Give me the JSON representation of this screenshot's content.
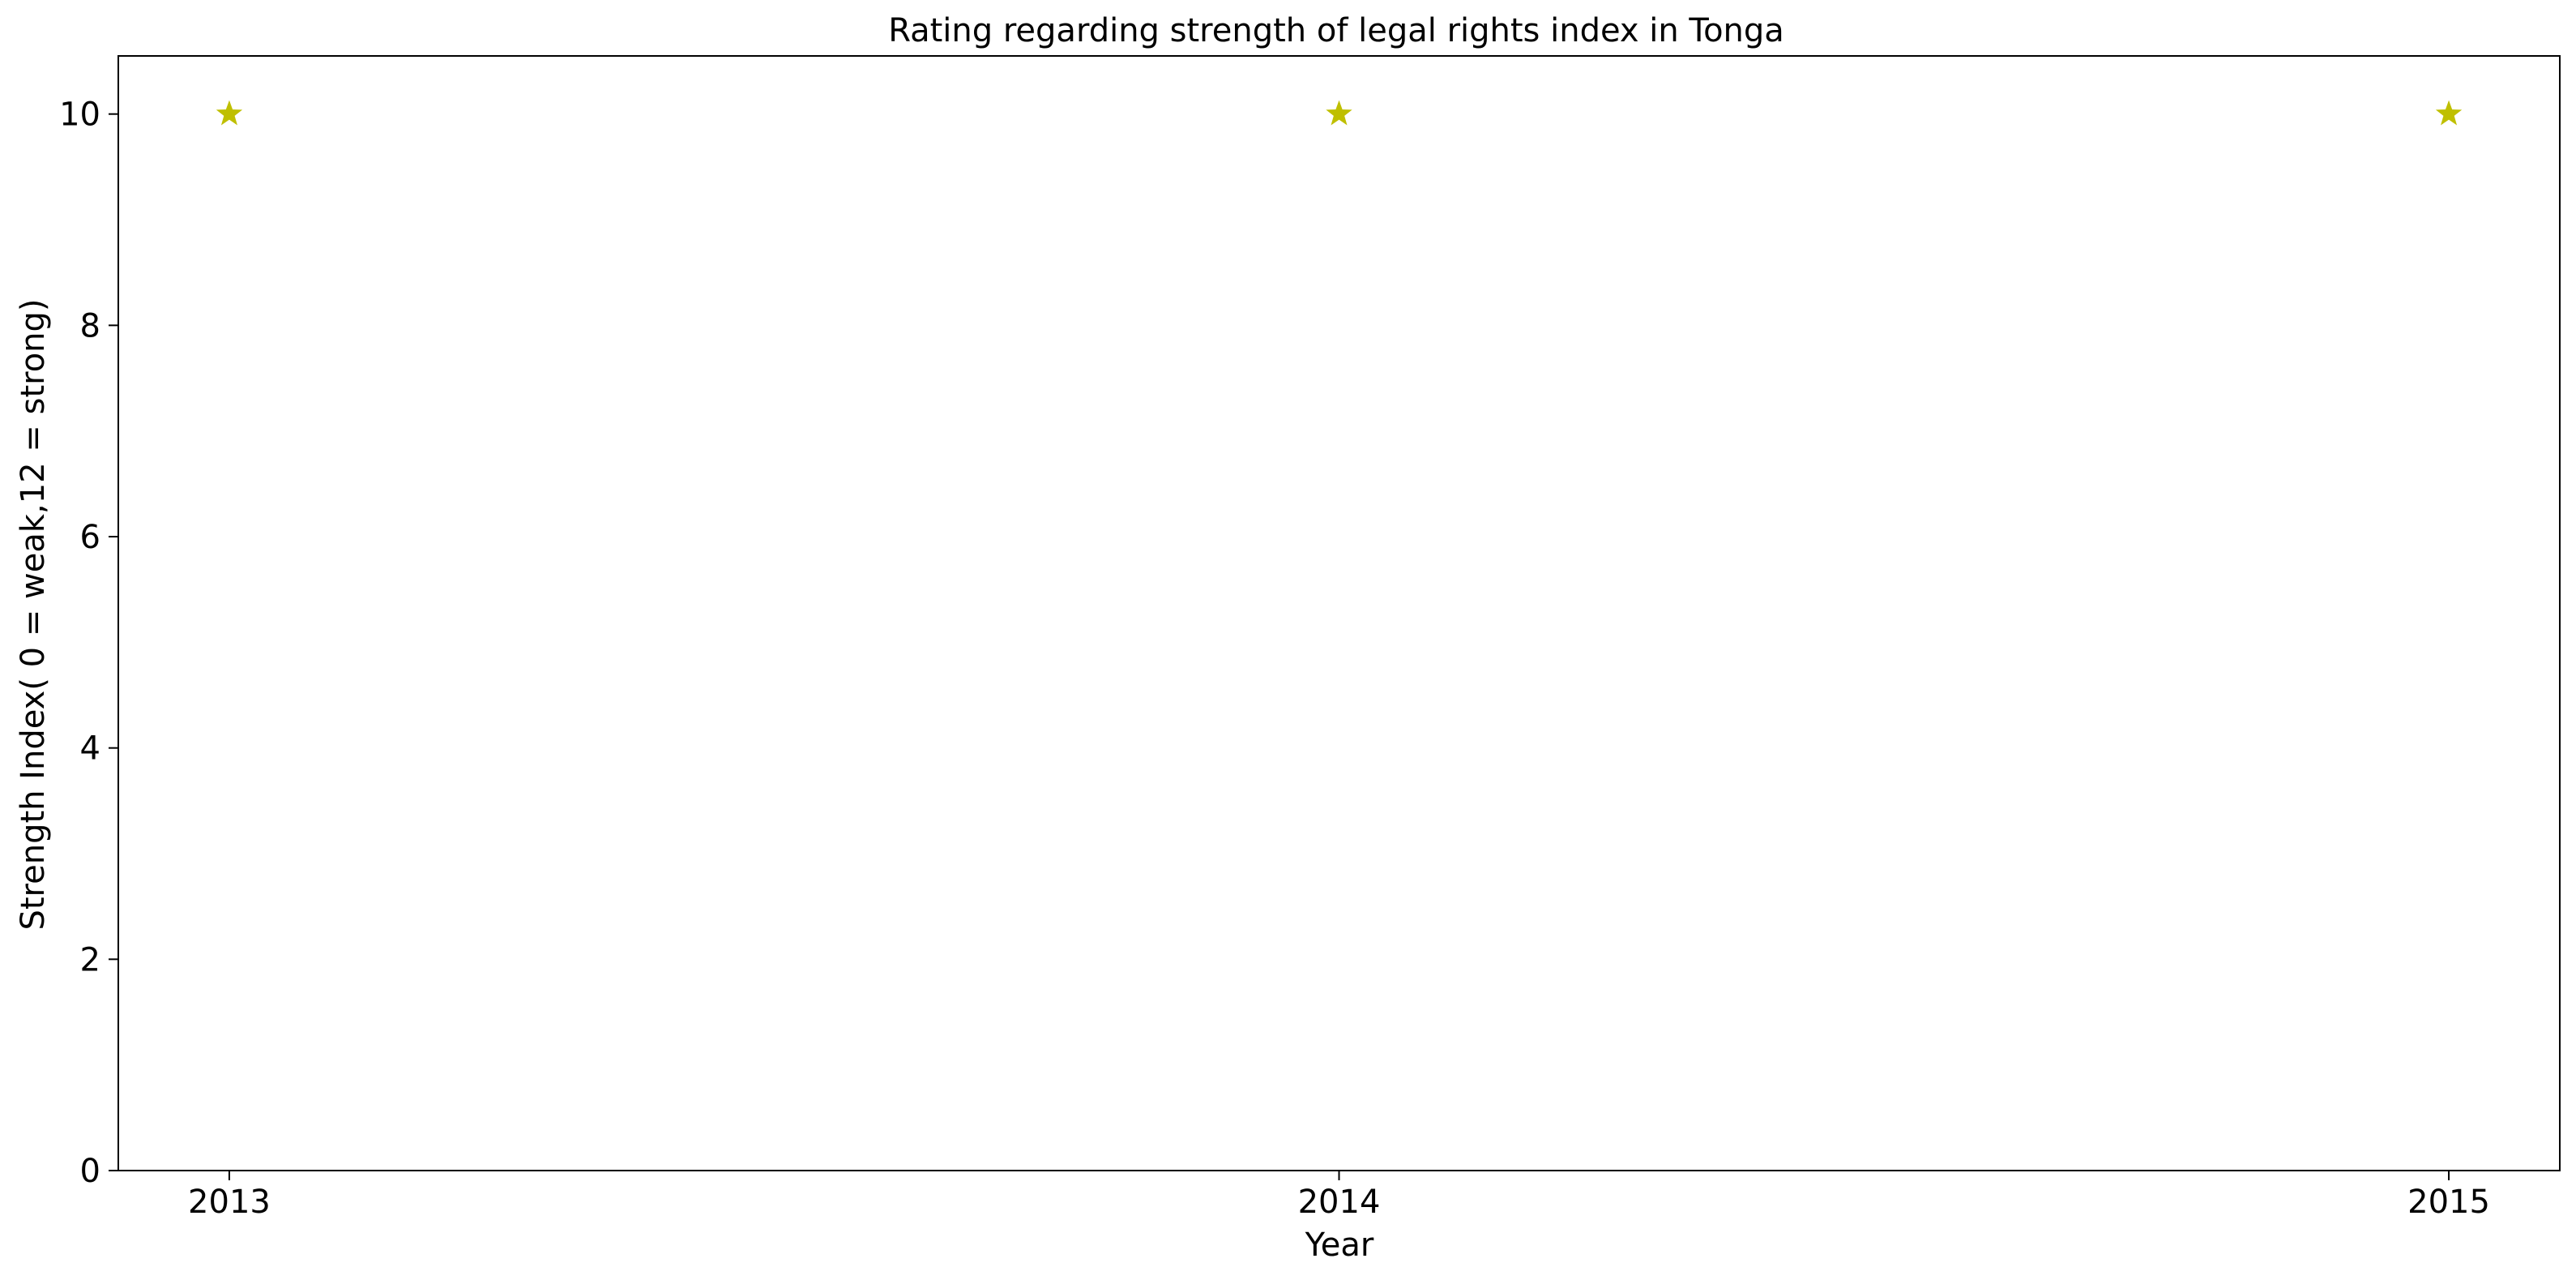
{
  "chart_data": {
    "type": "scatter",
    "title": "Rating regarding strength of legal rights index in Tonga",
    "xlabel": "Year",
    "ylabel": "Strength Index( 0 = weak,12 = strong)",
    "x": [
      "2013",
      "2014",
      "2015"
    ],
    "series": [
      {
        "values": [
          10,
          10,
          10
        ],
        "color": "#bfbf00",
        "marker": "star"
      }
    ],
    "ylim": [
      0,
      10.55
    ],
    "yticks": [
      0,
      2,
      4,
      6,
      8,
      10
    ],
    "grid": false,
    "legend": "none"
  }
}
